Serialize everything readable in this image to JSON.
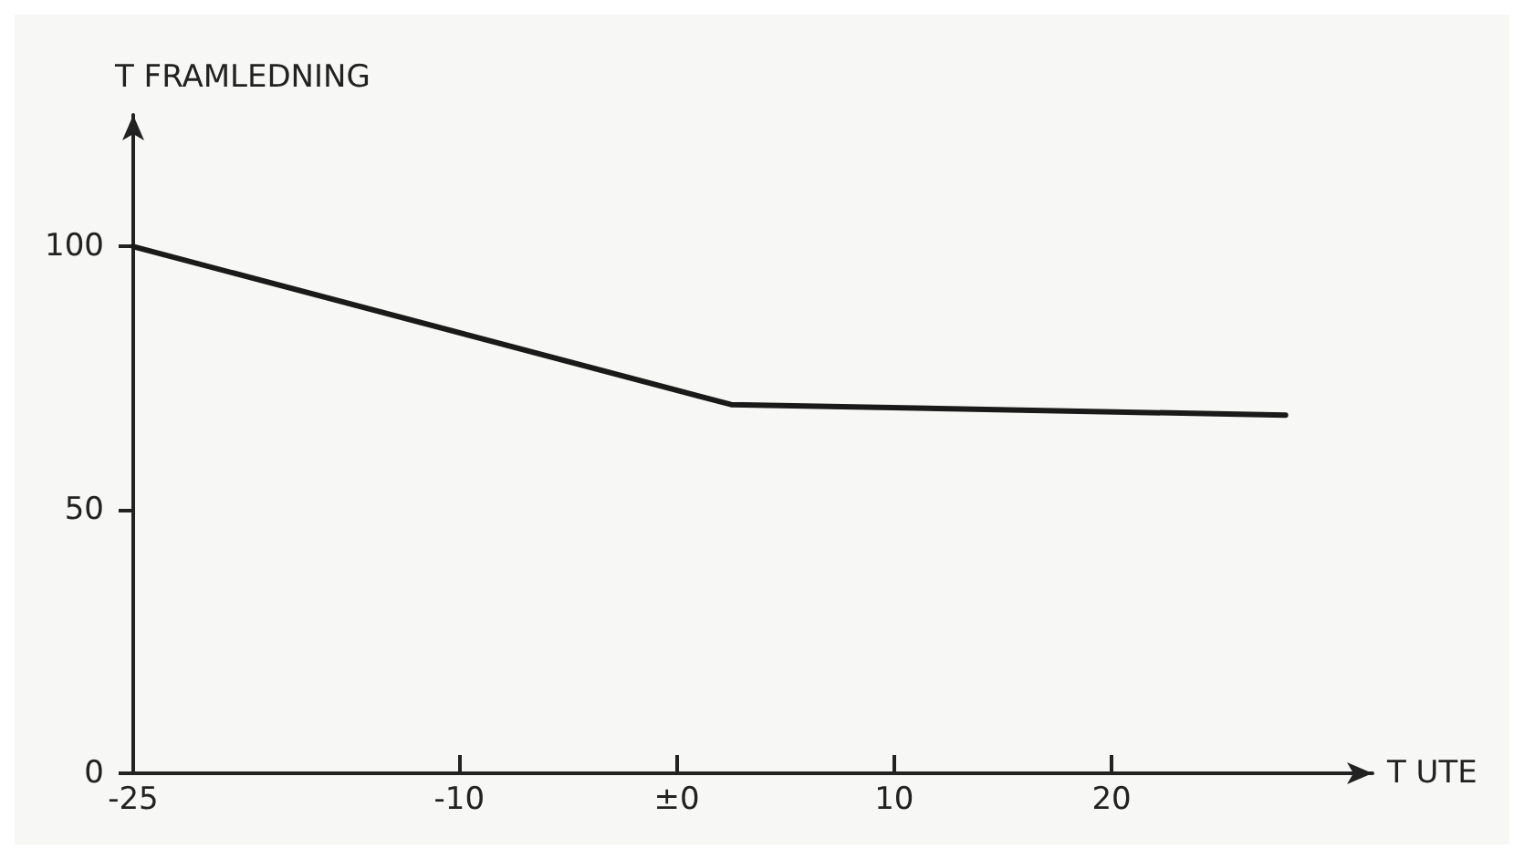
{
  "chart_data": {
    "type": "line",
    "xlabel": "T UTE",
    "ylabel": "T FRAMLEDNING",
    "x": [
      -25,
      2.5,
      28
    ],
    "series": [
      {
        "color": "#1a1a1a",
        "values": [
          100,
          70,
          68
        ]
      }
    ],
    "xlim": [
      -25,
      32
    ],
    "xticks": [
      -25,
      -10,
      {
        "value": 0,
        "label": "±0"
      },
      10,
      20
    ],
    "ylim": [
      0,
      125
    ],
    "yticks": [
      0,
      50,
      100
    ],
    "grid": false,
    "marker": "none",
    "line_style": "solid"
  }
}
